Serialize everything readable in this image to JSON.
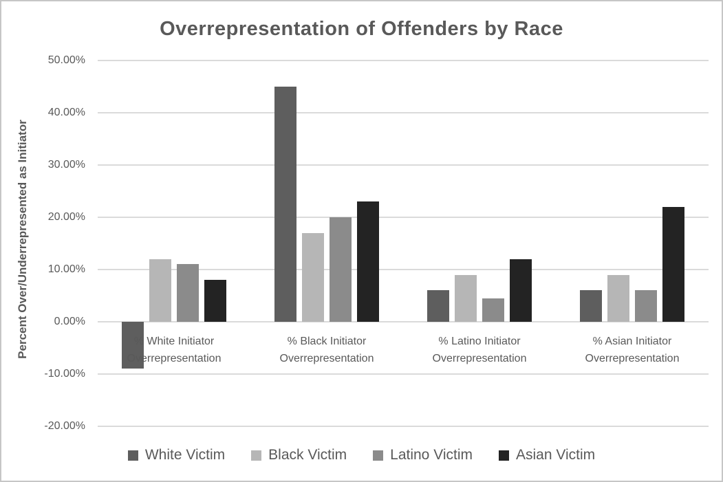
{
  "chart_data": {
    "type": "bar",
    "title": "Overrepresentation of Offenders by Race",
    "ylabel": "Percent Over/Underrepresented as Initiator",
    "xlabel": "",
    "categories": [
      "% White Initiator Overrepresentation",
      "% Black Initiator Overrepresentation",
      "% Latino Initiator Overrepresentation",
      "% Asian Initiator Overrepresentation"
    ],
    "series": [
      {
        "name": "White Victim",
        "color": "#5e5e5e",
        "values": [
          -9,
          45,
          6,
          6
        ]
      },
      {
        "name": "Black Victim",
        "color": "#b6b6b6",
        "values": [
          12,
          17,
          9,
          9
        ]
      },
      {
        "name": "Latino Victim",
        "color": "#8b8b8b",
        "values": [
          11,
          20,
          4.5,
          6
        ]
      },
      {
        "name": "Asian Victim",
        "color": "#232323",
        "values": [
          8,
          23,
          12,
          22
        ]
      }
    ],
    "y_ticks": [
      "50.00%",
      "40.00%",
      "30.00%",
      "20.00%",
      "10.00%",
      "0.00%",
      "-10.00%",
      "-20.00%"
    ],
    "y_tick_values": [
      50,
      40,
      30,
      20,
      10,
      0,
      -10,
      -20
    ],
    "ylim": [
      -20,
      50
    ],
    "grid": true,
    "legend_position": "bottom",
    "colors": {
      "text": "#595959",
      "gridline": "#dadada",
      "frame_border": "#c6c6c6",
      "background": "#ffffff"
    }
  }
}
